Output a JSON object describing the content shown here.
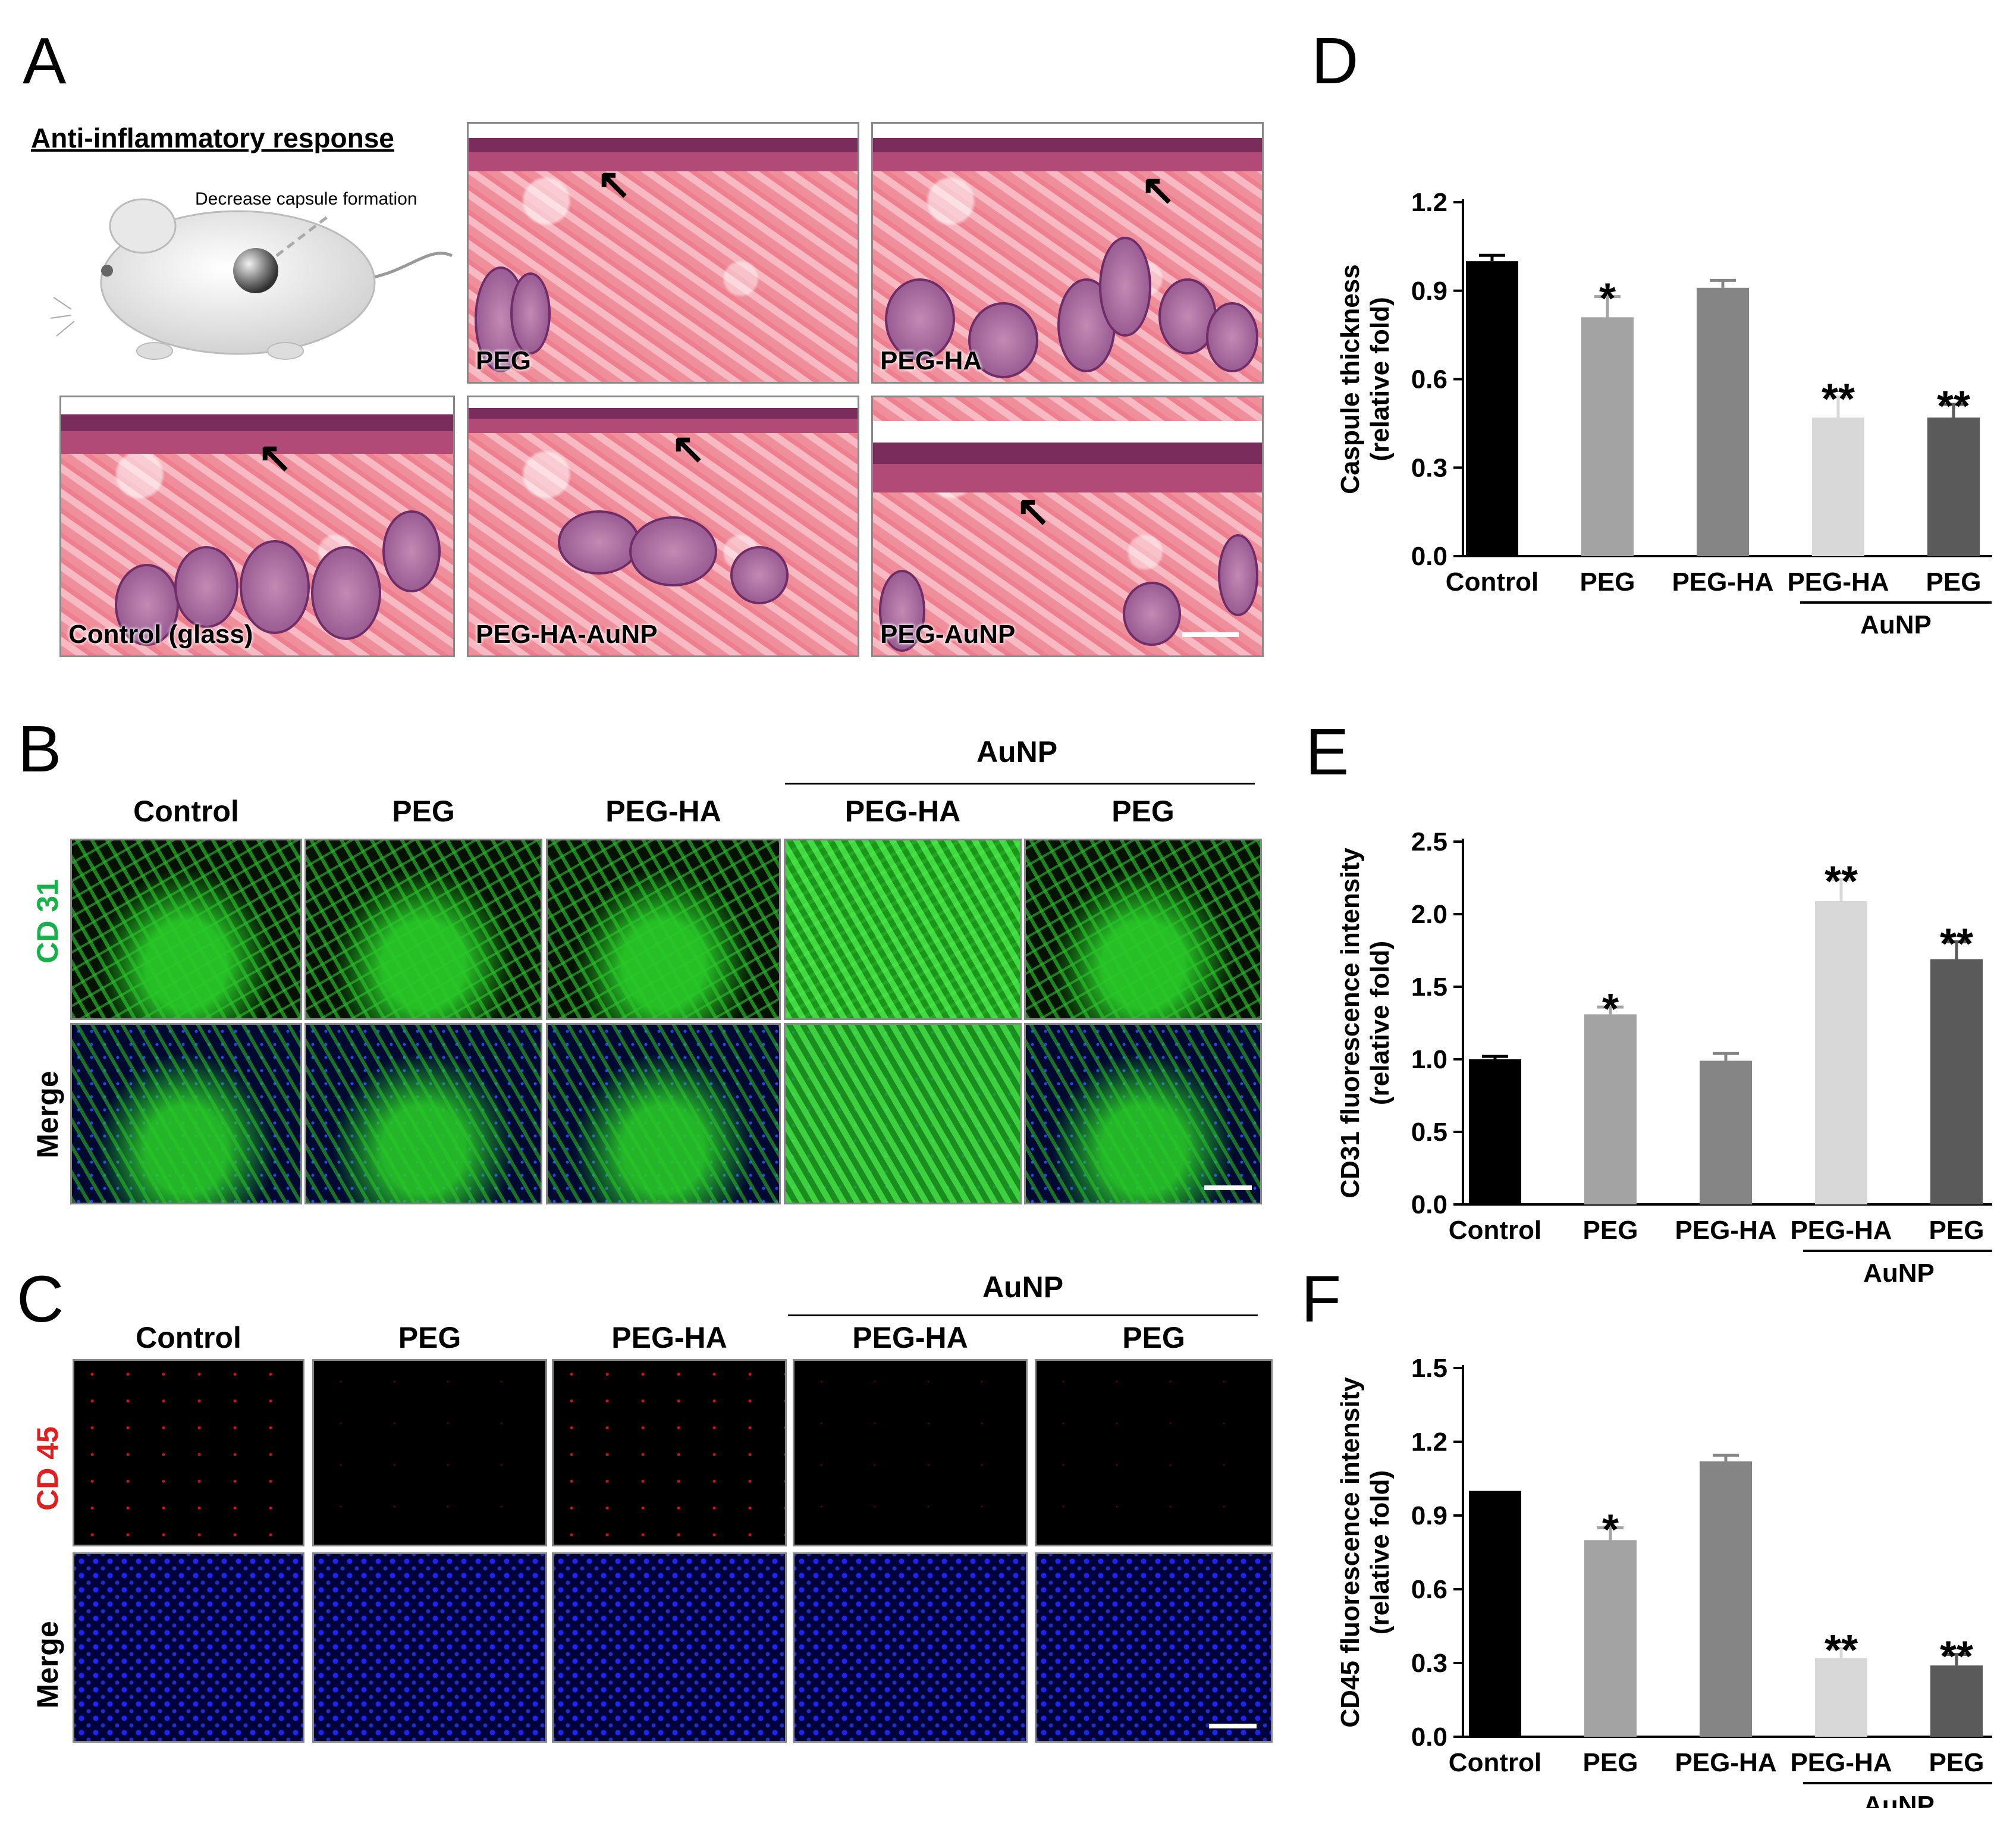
{
  "panels": {
    "A": "A",
    "B": "B",
    "C": "C",
    "D": "D",
    "E": "E",
    "F": "F"
  },
  "panelA": {
    "heading": "Anti-inflammatory response",
    "annotation": "Decrease capsule formation",
    "images": [
      {
        "label": "PEG"
      },
      {
        "label": "PEG-HA"
      },
      {
        "label": "Control (glass)"
      },
      {
        "label": "PEG-HA-AuNP"
      },
      {
        "label": "PEG-AuNP"
      }
    ]
  },
  "panelB": {
    "group_label": "AuNP",
    "columns": [
      "Control",
      "PEG",
      "PEG-HA",
      "PEG-HA",
      "PEG"
    ],
    "rows": [
      "CD 31",
      "Merge"
    ],
    "row_colors": [
      "#17b04a",
      "#000000"
    ]
  },
  "panelC": {
    "group_label": "AuNP",
    "columns": [
      "Control",
      "PEG",
      "PEG-HA",
      "PEG-HA",
      "PEG"
    ],
    "rows": [
      "CD 45",
      "Merge"
    ],
    "row_colors": [
      "#e02020",
      "#000000"
    ]
  },
  "chart_data": [
    {
      "type": "bar",
      "panel": "D",
      "categories": [
        "Control",
        "PEG",
        "PEG-HA",
        "PEG-HA",
        "PEG"
      ],
      "group_label": "AuNP",
      "group_indices": [
        3,
        4
      ],
      "values": [
        1.0,
        0.81,
        0.91,
        0.47,
        0.47
      ],
      "errors": [
        0.02,
        0.07,
        0.025,
        0.07,
        0.045
      ],
      "significance": [
        "",
        "*",
        "",
        "**",
        "**"
      ],
      "colors": [
        "#000000",
        "#a3a3a3",
        "#858585",
        "#d8d8d8",
        "#5a5a5a"
      ],
      "ylabel_line1": "Caspule thickness",
      "ylabel_line2": "(relative fold)",
      "ylim": [
        0,
        1.2
      ],
      "yticks": [
        "0.0",
        "0.3",
        "0.6",
        "0.9",
        "1.2"
      ]
    },
    {
      "type": "bar",
      "panel": "E",
      "categories": [
        "Control",
        "PEG",
        "PEG-HA",
        "PEG-HA",
        "PEG"
      ],
      "group_label": "AuNP",
      "group_indices": [
        3,
        4
      ],
      "values": [
        1.0,
        1.31,
        0.99,
        2.09,
        1.69
      ],
      "errors": [
        0.02,
        0.05,
        0.05,
        0.15,
        0.12
      ],
      "significance": [
        "",
        "*",
        "",
        "**",
        "**"
      ],
      "colors": [
        "#000000",
        "#a3a3a3",
        "#858585",
        "#d8d8d8",
        "#5a5a5a"
      ],
      "ylabel_line1": "CD31 fluorescence intensity",
      "ylabel_line2": "(relative fold)",
      "ylim": [
        0,
        2.5
      ],
      "yticks": [
        "0.0",
        "0.5",
        "1.0",
        "1.5",
        "2.0",
        "2.5"
      ]
    },
    {
      "type": "bar",
      "panel": "F",
      "categories": [
        "Control",
        "PEG",
        "PEG-HA",
        "PEG-HA",
        "PEG"
      ],
      "group_label": "AuNP",
      "group_indices": [
        3,
        4
      ],
      "values": [
        1.0,
        0.8,
        1.12,
        0.32,
        0.29
      ],
      "errors": [
        0.0,
        0.05,
        0.025,
        0.04,
        0.045
      ],
      "significance": [
        "",
        "*",
        "",
        "**",
        "**"
      ],
      "colors": [
        "#000000",
        "#a3a3a3",
        "#858585",
        "#d8d8d8",
        "#5a5a5a"
      ],
      "ylabel_line1": "CD45 fluorescence intensity",
      "ylabel_line2": "(relative fold)",
      "ylim": [
        0,
        1.5
      ],
      "yticks": [
        "0.0",
        "0.3",
        "0.6",
        "0.9",
        "1.2",
        "1.5"
      ]
    }
  ]
}
